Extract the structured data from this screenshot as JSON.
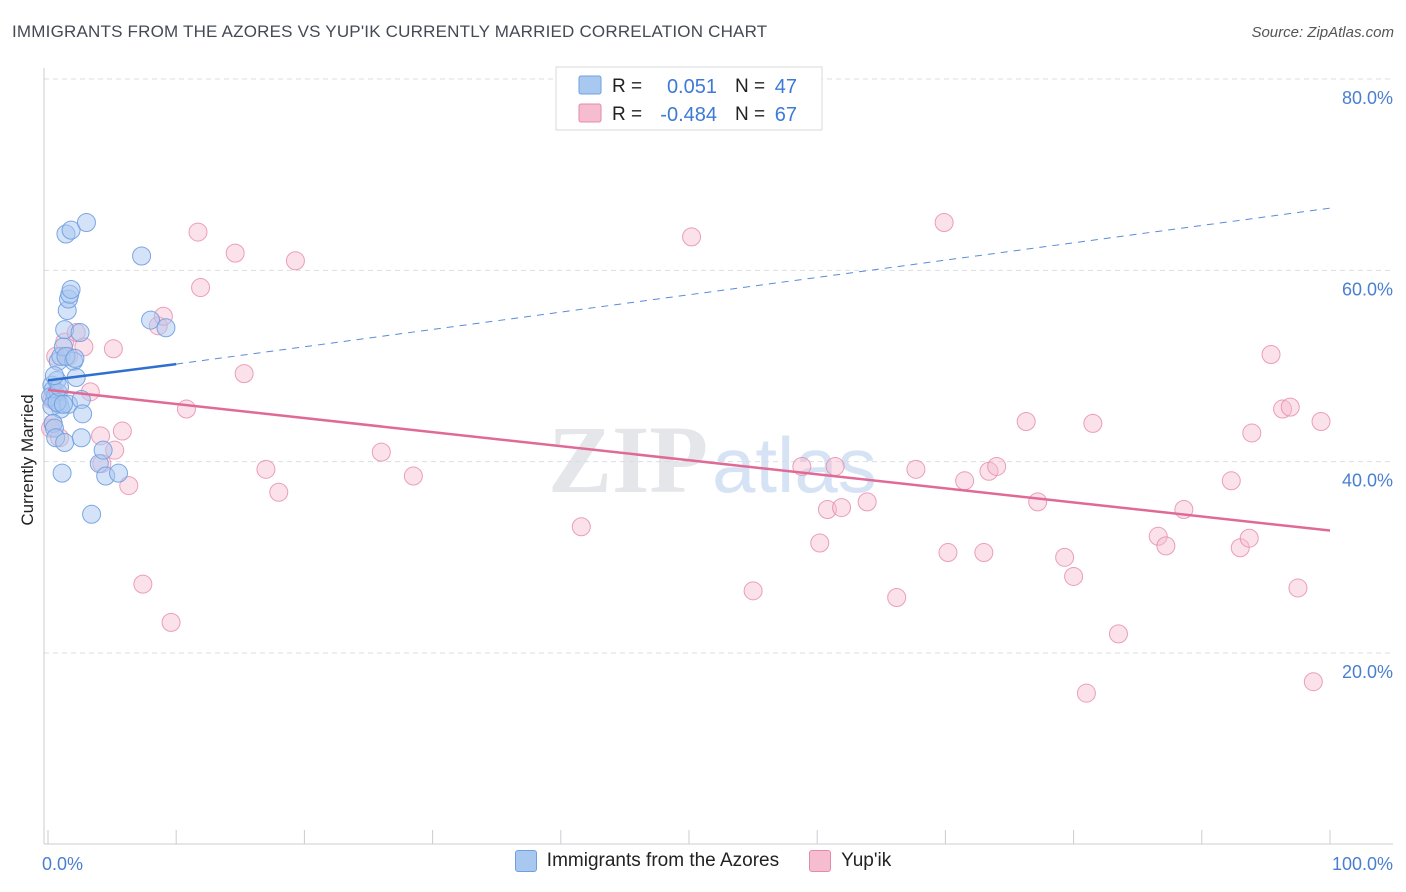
{
  "header": {
    "title": "IMMIGRANTS FROM THE AZORES VS YUP'IK CURRENTLY MARRIED CORRELATION CHART",
    "source": "Source: ZipAtlas.com"
  },
  "watermark": {
    "zip": "ZIP",
    "atlas": "atlas"
  },
  "colors": {
    "blue_fill": "#a9c8f0",
    "blue_stroke": "#6f9fe0",
    "blue_line": "#2e6fd0",
    "pink_fill": "#f6bcd0",
    "pink_stroke": "#e68aaa",
    "pink_line": "#e06a96",
    "grid": "#d9dde3",
    "tick_text": "#4a7fd0"
  },
  "legend": {
    "rows": [
      {
        "r_label": "R = ",
        "r_value": "0.051",
        "n_label": "N = ",
        "n_value": "47"
      },
      {
        "r_label": "R = ",
        "r_value": "-0.484",
        "n_label": "N = ",
        "n_value": "67"
      }
    ]
  },
  "bottom_legend": {
    "series1": "Immigrants from the Azores",
    "series2": "Yup'ik"
  },
  "chart_data": {
    "type": "scatter",
    "title": "IMMIGRANTS FROM THE AZORES VS YUP'IK CURRENTLY MARRIED CORRELATION CHART",
    "xlabel": "",
    "ylabel": "Currently Married",
    "xlim": [
      0,
      100
    ],
    "ylim": [
      2,
      82
    ],
    "x_tick_labels": [
      "0.0%",
      "100.0%"
    ],
    "y_ticks": [
      20,
      40,
      60,
      80
    ],
    "y_tick_labels": [
      "20.0%",
      "40.0%",
      "60.0%",
      "80.0%"
    ],
    "grid": true,
    "series": [
      {
        "name": "Immigrants from the Azores",
        "R": 0.051,
        "N": 47,
        "trend": {
          "x0": 0,
          "y0": 48.5,
          "x1": 10,
          "y1": 50.2,
          "dashed_to_x": 100,
          "dashed_to_y": 66.5
        },
        "points": [
          [
            0.3,
            48.0
          ],
          [
            0.4,
            47.5
          ],
          [
            0.5,
            46.5
          ],
          [
            0.6,
            47.0
          ],
          [
            0.7,
            48.5
          ],
          [
            0.8,
            47.2
          ],
          [
            0.9,
            46.0
          ],
          [
            1.0,
            45.5
          ],
          [
            0.2,
            46.8
          ],
          [
            0.3,
            45.8
          ],
          [
            0.4,
            44.0
          ],
          [
            0.5,
            43.5
          ],
          [
            0.6,
            42.5
          ],
          [
            0.8,
            50.5
          ],
          [
            1.0,
            51.0
          ],
          [
            1.2,
            52.0
          ],
          [
            1.3,
            53.8
          ],
          [
            1.5,
            55.8
          ],
          [
            1.6,
            57.0
          ],
          [
            1.7,
            57.5
          ],
          [
            1.8,
            58.0
          ],
          [
            1.4,
            63.8
          ],
          [
            1.8,
            64.2
          ],
          [
            3.0,
            65.0
          ],
          [
            1.1,
            38.8
          ],
          [
            1.3,
            42.0
          ],
          [
            1.6,
            46.0
          ],
          [
            2.0,
            50.5
          ],
          [
            2.2,
            48.8
          ],
          [
            2.5,
            53.5
          ],
          [
            2.6,
            46.5
          ],
          [
            2.7,
            45.0
          ],
          [
            2.6,
            42.5
          ],
          [
            3.4,
            34.5
          ],
          [
            4.0,
            39.8
          ],
          [
            4.3,
            41.2
          ],
          [
            4.5,
            38.5
          ],
          [
            5.5,
            38.8
          ],
          [
            7.3,
            61.5
          ],
          [
            8.0,
            54.8
          ],
          [
            9.2,
            54.0
          ],
          [
            0.7,
            46.2
          ],
          [
            1.2,
            46.0
          ],
          [
            0.9,
            47.8
          ],
          [
            1.4,
            51.0
          ],
          [
            2.1,
            50.8
          ],
          [
            0.5,
            49.0
          ]
        ]
      },
      {
        "name": "Yup'ik",
        "R": -0.484,
        "N": 67,
        "trend": {
          "x0": 0,
          "y0": 47.5,
          "x1": 100,
          "y1": 32.8
        },
        "points": [
          [
            0.2,
            43.5
          ],
          [
            0.3,
            46.5
          ],
          [
            0.4,
            44.0
          ],
          [
            0.6,
            51.0
          ],
          [
            0.9,
            42.5
          ],
          [
            1.3,
            52.5
          ],
          [
            1.6,
            51.0
          ],
          [
            2.2,
            53.5
          ],
          [
            2.8,
            52.0
          ],
          [
            3.3,
            47.3
          ],
          [
            4.1,
            42.7
          ],
          [
            4.2,
            39.8
          ],
          [
            5.1,
            51.8
          ],
          [
            5.2,
            41.2
          ],
          [
            5.8,
            43.2
          ],
          [
            6.3,
            37.5
          ],
          [
            7.4,
            27.2
          ],
          [
            8.6,
            54.2
          ],
          [
            9.0,
            55.2
          ],
          [
            9.6,
            23.2
          ],
          [
            10.8,
            45.5
          ],
          [
            11.7,
            64.0
          ],
          [
            11.9,
            58.2
          ],
          [
            14.6,
            61.8
          ],
          [
            15.3,
            49.2
          ],
          [
            17.0,
            39.2
          ],
          [
            18.0,
            36.8
          ],
          [
            19.3,
            61.0
          ],
          [
            26.0,
            41.0
          ],
          [
            28.5,
            38.5
          ],
          [
            41.6,
            33.2
          ],
          [
            50.2,
            63.5
          ],
          [
            55.0,
            26.5
          ],
          [
            58.8,
            39.5
          ],
          [
            60.2,
            31.5
          ],
          [
            60.8,
            35.0
          ],
          [
            61.4,
            39.5
          ],
          [
            61.9,
            35.2
          ],
          [
            63.9,
            35.8
          ],
          [
            66.2,
            25.8
          ],
          [
            67.7,
            39.2
          ],
          [
            69.9,
            65.0
          ],
          [
            70.2,
            30.5
          ],
          [
            71.5,
            38.0
          ],
          [
            73.0,
            30.5
          ],
          [
            73.4,
            39.0
          ],
          [
            74.0,
            39.5
          ],
          [
            76.3,
            44.2
          ],
          [
            77.2,
            35.8
          ],
          [
            79.3,
            30.0
          ],
          [
            80.0,
            28.0
          ],
          [
            81.0,
            15.8
          ],
          [
            81.5,
            44.0
          ],
          [
            83.5,
            22.0
          ],
          [
            86.6,
            32.2
          ],
          [
            87.2,
            31.2
          ],
          [
            88.6,
            35.0
          ],
          [
            92.3,
            38.0
          ],
          [
            93.0,
            31.0
          ],
          [
            93.7,
            32.0
          ],
          [
            93.9,
            43.0
          ],
          [
            95.4,
            51.2
          ],
          [
            96.3,
            45.5
          ],
          [
            96.9,
            45.7
          ],
          [
            97.5,
            26.8
          ],
          [
            98.7,
            17.0
          ],
          [
            99.3,
            44.2
          ]
        ]
      }
    ]
  }
}
